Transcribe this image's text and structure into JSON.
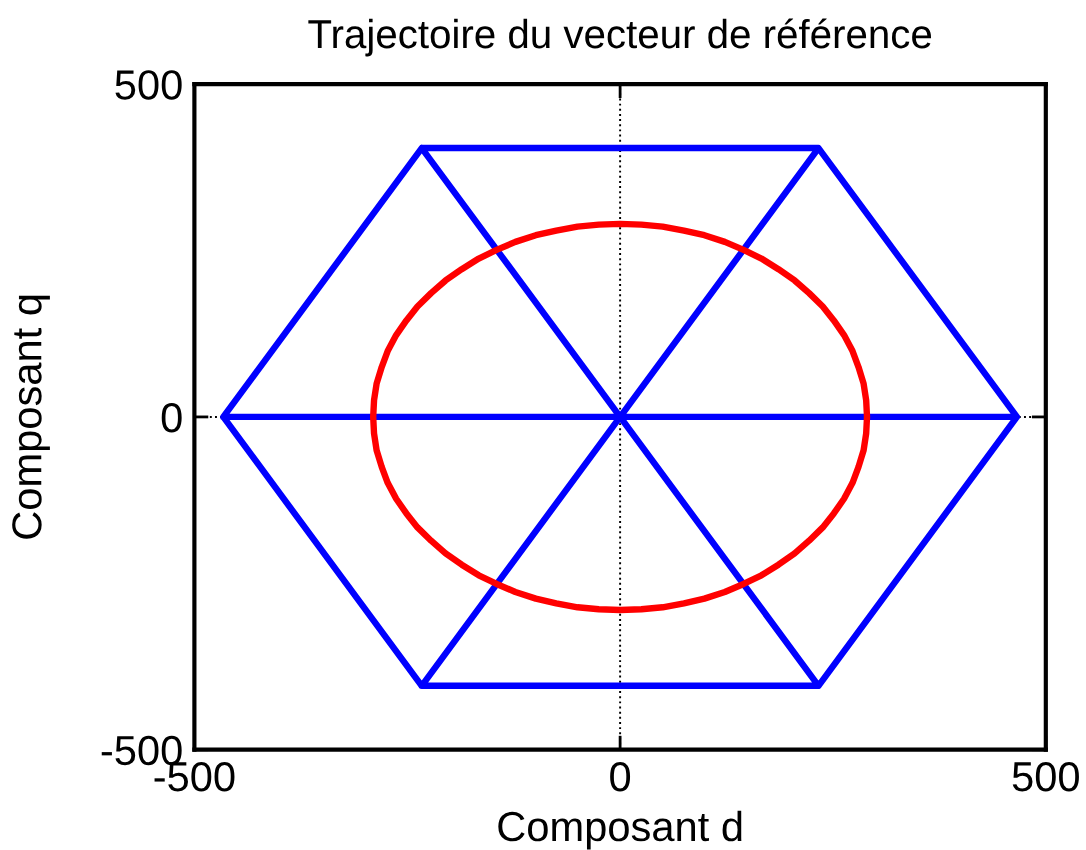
{
  "chart_data": {
    "type": "line",
    "title": "Trajectoire du vecteur de référence",
    "xlabel": "Composant d",
    "ylabel": "Composant q",
    "xlim": [
      -500,
      500
    ],
    "ylim": [
      -500,
      500
    ],
    "xticks": [
      -500,
      0,
      500
    ],
    "yticks": [
      -500,
      0,
      500
    ],
    "grid": true,
    "series": [
      {
        "color": "#0000ff",
        "x": [
          466,
          233,
          -233,
          -466,
          -233,
          233,
          466,
          -466,
          -233,
          233,
          -233,
          233
        ],
        "values": [
          0,
          404,
          404,
          0,
          -404,
          -404,
          0,
          0,
          404,
          -404,
          -404,
          404
        ]
      },
      {
        "color": "#ff0000",
        "x": [
          290,
          289,
          286,
          280,
          273,
          263,
          251,
          238,
          222,
          205,
          186,
          166,
          145,
          123,
          99,
          75,
          50,
          25,
          0,
          -25,
          -50,
          -75,
          -99,
          -123,
          -145,
          -166,
          -186,
          -205,
          -222,
          -238,
          -251,
          -263,
          -273,
          -280,
          -286,
          -289,
          -290,
          -289,
          -286,
          -280,
          -273,
          -263,
          -251,
          -238,
          -222,
          -205,
          -186,
          -166,
          -145,
          -123,
          -99,
          -75,
          -50,
          -25,
          0,
          25,
          50,
          75,
          99,
          123,
          145,
          166,
          186,
          205,
          222,
          238,
          251,
          263,
          273,
          280,
          286,
          289,
          290,
          289
        ],
        "values": [
          0,
          25,
          50,
          75,
          99,
          123,
          145,
          166,
          186,
          205,
          222,
          238,
          251,
          263,
          273,
          280,
          286,
          289,
          290,
          289,
          286,
          280,
          273,
          263,
          251,
          238,
          222,
          205,
          186,
          166,
          145,
          123,
          99,
          75,
          50,
          25,
          0,
          -25,
          -50,
          -75,
          -99,
          -123,
          -145,
          -166,
          -186,
          -205,
          -222,
          -238,
          -251,
          -263,
          -273,
          -280,
          -286,
          -289,
          -290,
          -289,
          -286,
          -280,
          -273,
          -263,
          -251,
          -238,
          -222,
          -205,
          -186,
          -166,
          -145,
          -123,
          -99,
          -75,
          -50,
          -25,
          0,
          25
        ]
      }
    ]
  }
}
